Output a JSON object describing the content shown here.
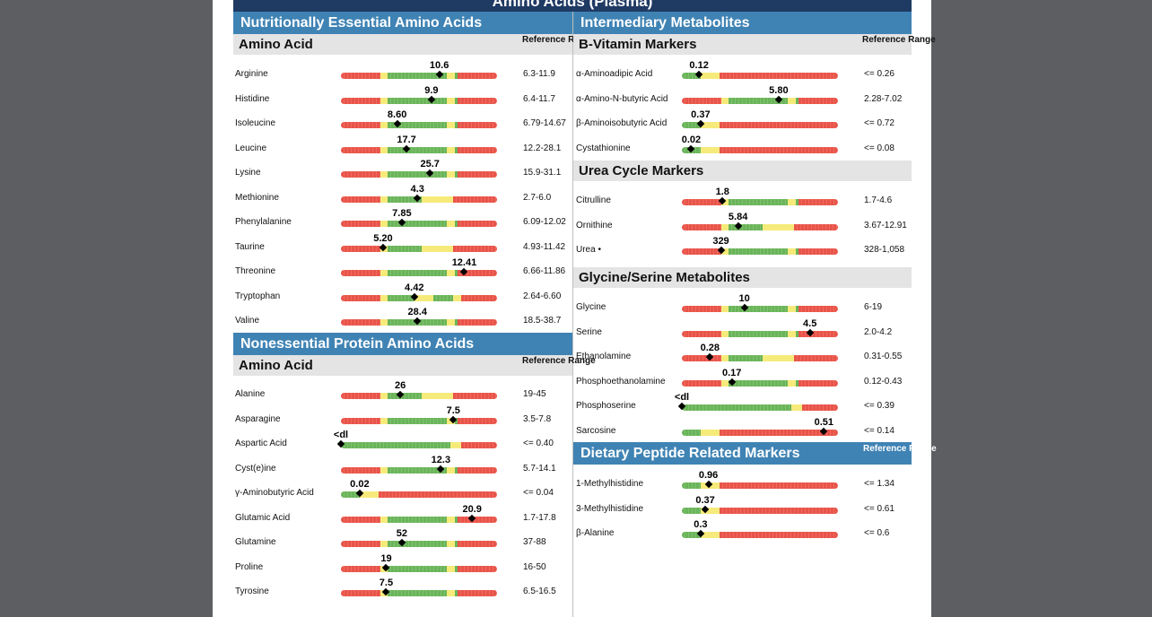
{
  "report": {
    "banner": "Amino Acids (Plasma)"
  },
  "legend_colors": {
    "red": "#e8544a",
    "yellow": "#f6eb7a",
    "green": "#6ab45a",
    "header": "#3f83b4",
    "banner": "#1f3a63"
  },
  "left": {
    "essential": {
      "title": "Nutritionally Essential Amino Acids",
      "subheader": "Amino Acid",
      "ref_label": "Reference Range",
      "rows": [
        {
          "name": "Arginine",
          "value": "10.6",
          "range": "6.3-11.9",
          "pos": 0.63,
          "bar": "std"
        },
        {
          "name": "Histidine",
          "value": "9.9",
          "range": "6.4-11.7",
          "pos": 0.58,
          "bar": "std"
        },
        {
          "name": "Isoleucine",
          "value": "8.60",
          "range": "6.79-14.67",
          "pos": 0.36,
          "bar": "std"
        },
        {
          "name": "Leucine",
          "value": "17.7",
          "range": "12.2-28.1",
          "pos": 0.42,
          "bar": "std"
        },
        {
          "name": "Lysine",
          "value": "25.7",
          "range": "15.9-31.1",
          "pos": 0.57,
          "bar": "std"
        },
        {
          "name": "Methionine",
          "value": "4.3",
          "range": "2.7-6.0",
          "pos": 0.49,
          "bar": "std_wide_y"
        },
        {
          "name": "Phenylalanine",
          "value": "7.85",
          "range": "6.09-12.02",
          "pos": 0.39,
          "bar": "std"
        },
        {
          "name": "Taurine",
          "value": "5.20",
          "range": "4.93-11.42",
          "pos": 0.27,
          "bar": "std_wide_y"
        },
        {
          "name": "Threonine",
          "value": "12.41",
          "range": "6.66-11.86",
          "pos": 0.79,
          "bar": "std"
        },
        {
          "name": "Tryptophan",
          "value": "4.42",
          "range": "2.64-6.60",
          "pos": 0.47,
          "bar": "std_mid_y"
        },
        {
          "name": "Valine",
          "value": "28.4",
          "range": "18.5-38.7",
          "pos": 0.49,
          "bar": "std"
        }
      ]
    },
    "nonessential": {
      "title": "Nonessential Protein Amino Acids",
      "subheader": "Amino Acid",
      "ref_label": "Reference Range",
      "rows": [
        {
          "name": "Alanine",
          "value": "26",
          "range": "19-45",
          "pos": 0.38,
          "bar": "std_wide_y"
        },
        {
          "name": "Asparagine",
          "value": "7.5",
          "range": "3.5-7.8",
          "pos": 0.72,
          "bar": "std"
        },
        {
          "name": "Aspartic Acid",
          "value": "<dl",
          "range": "<= 0.40",
          "pos": 0.0,
          "bar": "lowonly"
        },
        {
          "name": "Cyst(e)ine",
          "value": "12.3",
          "range": "5.7-14.1",
          "pos": 0.64,
          "bar": "std"
        },
        {
          "name": "γ-Aminobutyric Acid",
          "value": "0.02",
          "range": "<= 0.04",
          "pos": 0.12,
          "bar": "lowshort"
        },
        {
          "name": "Glutamic Acid",
          "value": "20.9",
          "range": "1.7-17.8",
          "pos": 0.84,
          "bar": "std"
        },
        {
          "name": "Glutamine",
          "value": "52",
          "range": "37-88",
          "pos": 0.39,
          "bar": "std"
        },
        {
          "name": "Proline",
          "value": "19",
          "range": "16-50",
          "pos": 0.29,
          "bar": "std"
        },
        {
          "name": "Tyrosine",
          "value": "7.5",
          "range": "6.5-16.5",
          "pos": 0.29,
          "bar": "std"
        }
      ]
    }
  },
  "right": {
    "intermediary": {
      "title": "Intermediary Metabolites",
      "subheader": "B-Vitamin Markers",
      "ref_label": "Reference Range",
      "rows": [
        {
          "name": "α-Aminoadipic Acid",
          "value": "0.12",
          "range": "<= 0.26",
          "pos": 0.11,
          "bar": "low"
        },
        {
          "name": "α-Amino-N-butyric Acid",
          "value": "5.80",
          "range": "2.28-7.02",
          "pos": 0.62,
          "bar": "std"
        },
        {
          "name": "β-Aminoisobutyric Acid",
          "value": "0.37",
          "range": "<= 0.72",
          "pos": 0.12,
          "bar": "low"
        },
        {
          "name": "Cystathionine",
          "value": "0.02",
          "range": "<= 0.08",
          "pos": 0.06,
          "bar": "low"
        }
      ]
    },
    "urea": {
      "subheader": "Urea Cycle Markers",
      "rows": [
        {
          "name": "Citrulline",
          "value": "1.8",
          "range": "1.7-4.6",
          "pos": 0.26,
          "bar": "std"
        },
        {
          "name": "Ornithine",
          "value": "5.84",
          "range": "3.67-12.91",
          "pos": 0.36,
          "bar": "std_wide_y"
        },
        {
          "name": "Urea •",
          "value": "329",
          "range": "328-1,058",
          "pos": 0.25,
          "bar": "std"
        }
      ]
    },
    "glycine": {
      "subheader": "Glycine/Serine Metabolites",
      "rows": [
        {
          "name": "Glycine",
          "value": "10",
          "range": "6-19",
          "pos": 0.4,
          "bar": "std"
        },
        {
          "name": "Serine",
          "value": "4.5",
          "range": "2.0-4.2",
          "pos": 0.82,
          "bar": "std"
        },
        {
          "name": "Ethanolamine",
          "value": "0.28",
          "range": "0.31-0.55",
          "pos": 0.18,
          "bar": "std_wide_y"
        },
        {
          "name": "Phosphoethanolamine",
          "value": "0.17",
          "range": "0.12-0.43",
          "pos": 0.32,
          "bar": "std"
        },
        {
          "name": "Phosphoserine",
          "value": "<dl",
          "range": "<= 0.39",
          "pos": 0.0,
          "bar": "lowonly"
        },
        {
          "name": "Sarcosine",
          "value": "0.51",
          "range": "<= 0.14",
          "pos": 0.91,
          "bar": "lowshort"
        }
      ]
    },
    "dietary": {
      "title": "Dietary Peptide Related Markers",
      "ref_label": "Reference Range",
      "rows": [
        {
          "name": "1-Methylhistidine",
          "value": "0.96",
          "range": "<= 1.34",
          "pos": 0.17,
          "bar": "low"
        },
        {
          "name": "3-Methylhistidine",
          "value": "0.37",
          "range": "<= 0.61",
          "pos": 0.15,
          "bar": "low"
        },
        {
          "name": "β-Alanine",
          "value": "0.3",
          "range": "<= 0.6",
          "pos": 0.12,
          "bar": "low"
        }
      ]
    }
  }
}
